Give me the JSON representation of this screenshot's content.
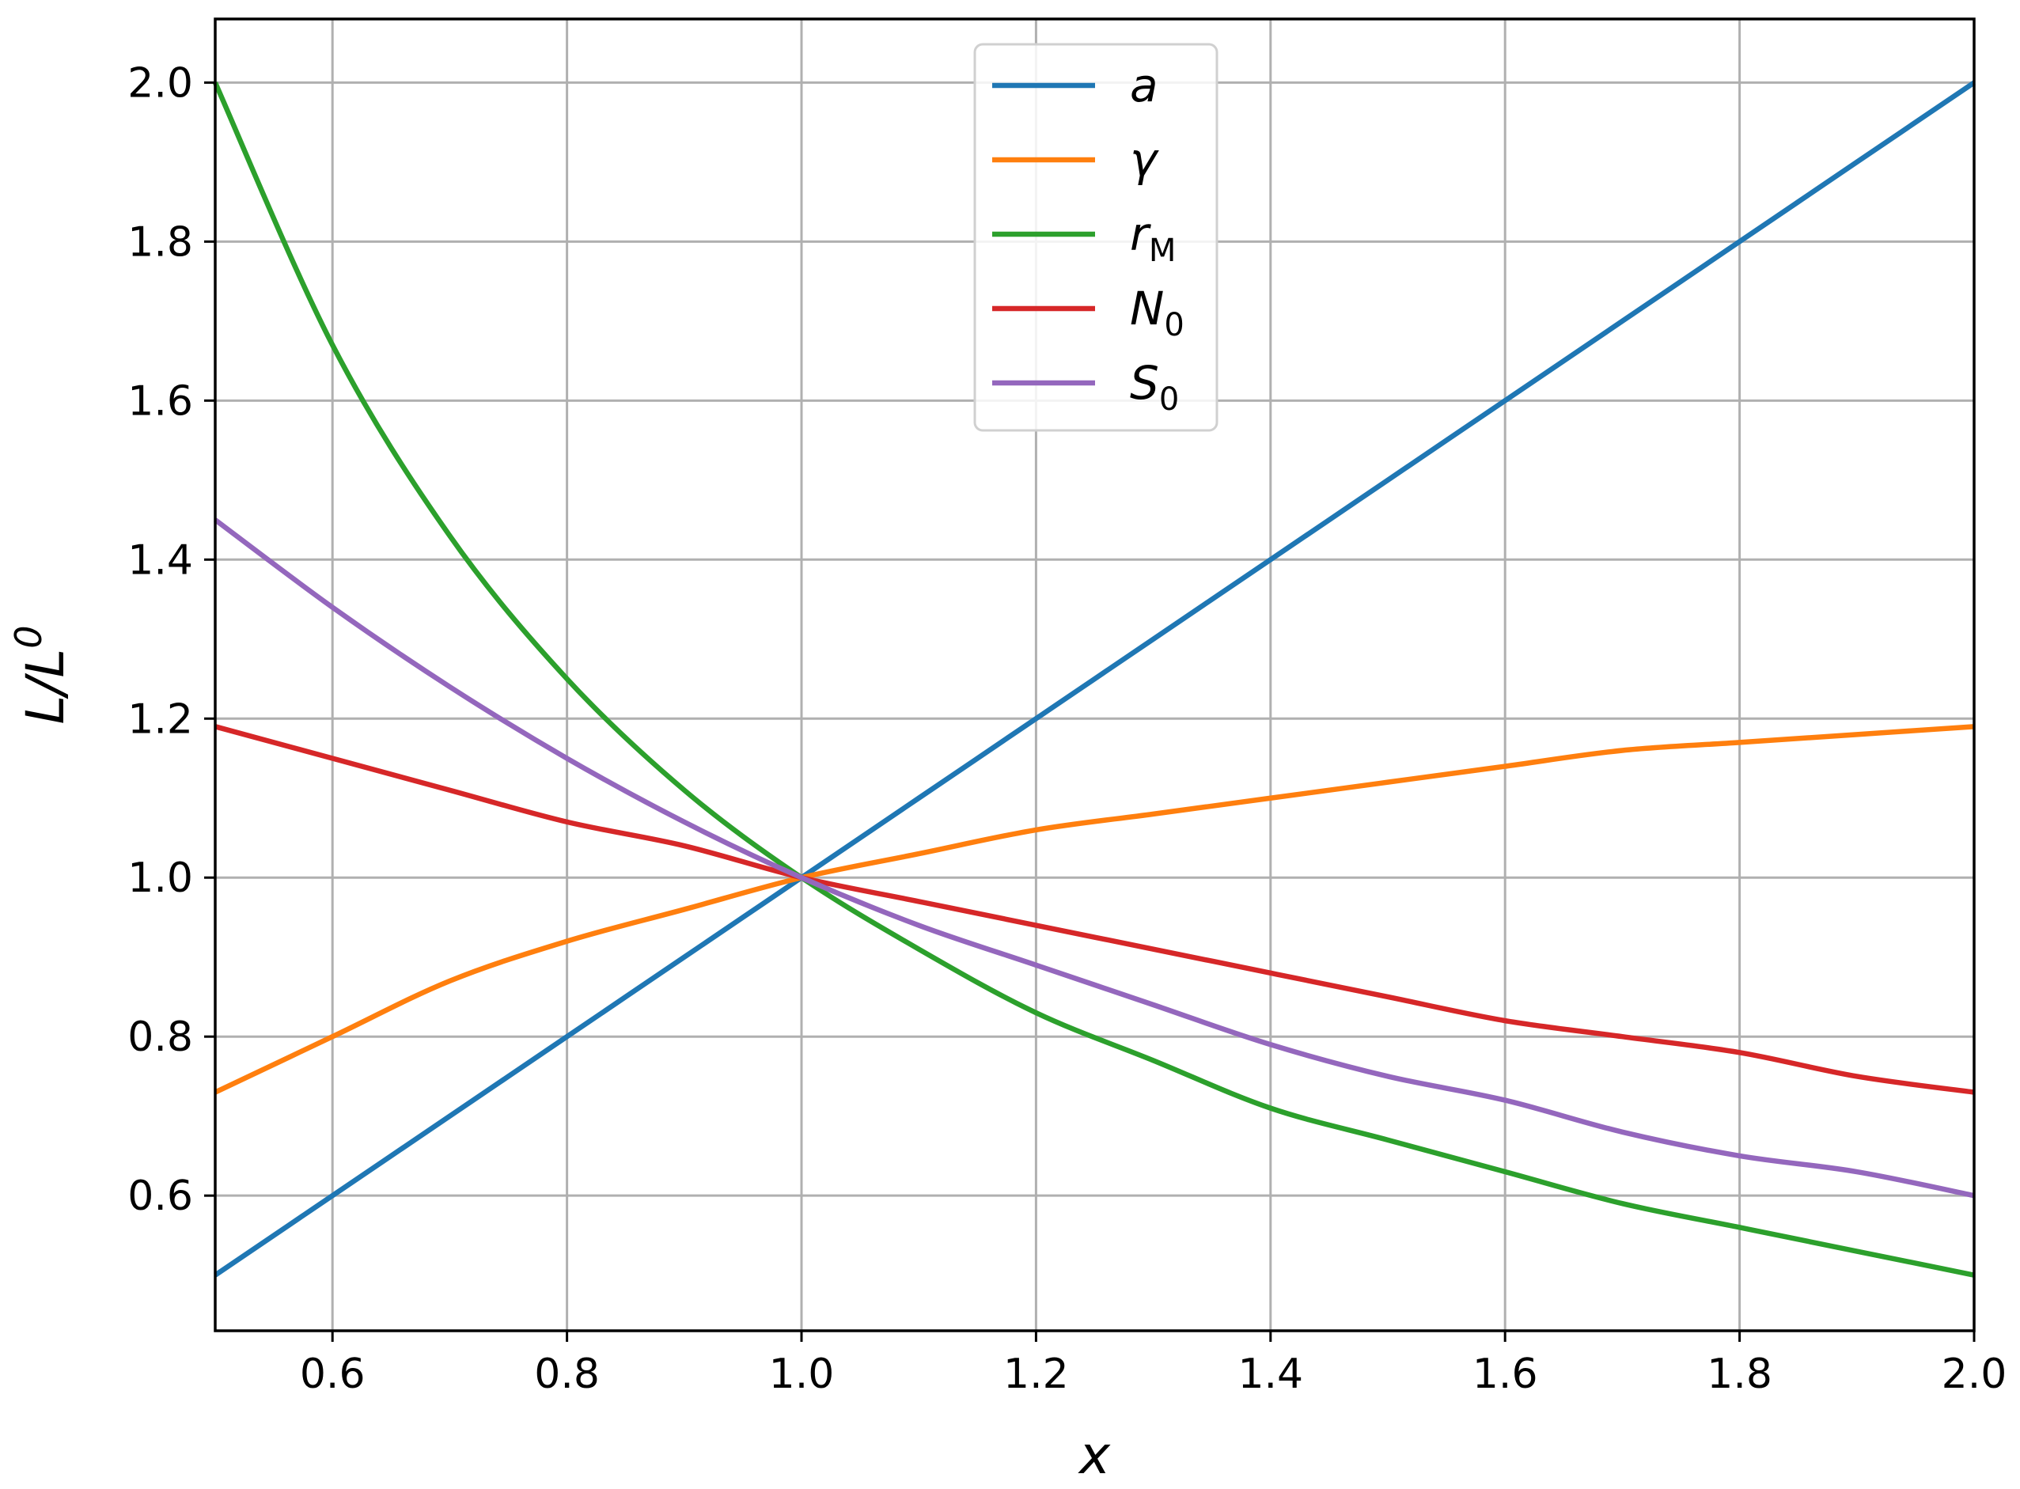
{
  "chart_data": {
    "type": "line",
    "xlabel": "x",
    "ylabel_base": "L/L",
    "ylabel_sup": "0",
    "xlim": [
      0.5,
      2.0
    ],
    "ylim": [
      0.43,
      2.08
    ],
    "grid": true,
    "legend_position": "upper center",
    "xticks": [
      0.6,
      0.8,
      1.0,
      1.2,
      1.4,
      1.6,
      1.8,
      2.0
    ],
    "xtick_labels": [
      "0.6",
      "0.8",
      "1.0",
      "1.2",
      "1.4",
      "1.6",
      "1.8",
      "2.0"
    ],
    "yticks": [
      0.6,
      0.8,
      1.0,
      1.2,
      1.4,
      1.6,
      1.8,
      2.0
    ],
    "ytick_labels": [
      "0.6",
      "0.8",
      "1.0",
      "1.2",
      "1.4",
      "1.6",
      "1.8",
      "2.0"
    ],
    "x": [
      0.5,
      0.6,
      0.7,
      0.8,
      0.9,
      1.0,
      1.1,
      1.2,
      1.3,
      1.4,
      1.5,
      1.6,
      1.7,
      1.8,
      1.9,
      2.0
    ],
    "series": [
      {
        "name": "a",
        "sub": "",
        "color": "#1f77b4",
        "values": [
          0.5,
          0.6,
          0.7,
          0.8,
          0.9,
          1.0,
          1.1,
          1.2,
          1.3,
          1.4,
          1.5,
          1.6,
          1.7,
          1.8,
          1.9,
          2.0
        ]
      },
      {
        "name": "γ",
        "sub": "",
        "color": "#ff7f0e",
        "values": [
          0.73,
          0.8,
          0.87,
          0.92,
          0.96,
          1.0,
          1.03,
          1.06,
          1.08,
          1.1,
          1.12,
          1.14,
          1.16,
          1.17,
          1.18,
          1.19
        ]
      },
      {
        "name": "r",
        "sub": "M",
        "color": "#2ca02c",
        "values": [
          2.0,
          1.67,
          1.43,
          1.25,
          1.11,
          1.0,
          0.91,
          0.83,
          0.77,
          0.71,
          0.67,
          0.63,
          0.59,
          0.56,
          0.53,
          0.5
        ]
      },
      {
        "name": "N",
        "sub": "0",
        "color": "#d62728",
        "values": [
          1.19,
          1.15,
          1.11,
          1.07,
          1.04,
          1.0,
          0.97,
          0.94,
          0.91,
          0.88,
          0.85,
          0.82,
          0.8,
          0.78,
          0.75,
          0.73
        ]
      },
      {
        "name": "S",
        "sub": "0",
        "color": "#9467bd",
        "values": [
          1.45,
          1.34,
          1.24,
          1.15,
          1.07,
          1.0,
          0.94,
          0.89,
          0.84,
          0.79,
          0.75,
          0.72,
          0.68,
          0.65,
          0.63,
          0.6
        ]
      }
    ]
  }
}
